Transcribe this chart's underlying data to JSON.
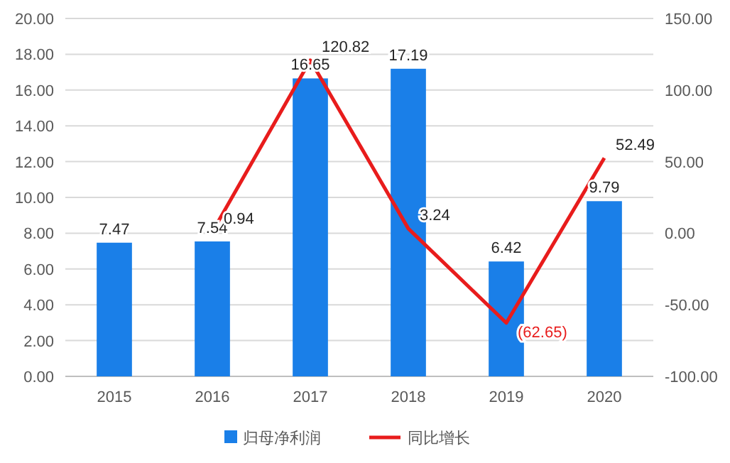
{
  "chart_data": {
    "type": "bar",
    "categories": [
      "2015",
      "2016",
      "2017",
      "2018",
      "2019",
      "2020"
    ],
    "series": [
      {
        "name": "归母净利润",
        "color": "#1a7fe8",
        "values": [
          7.47,
          7.54,
          16.65,
          17.19,
          6.42,
          9.79
        ],
        "value_labels": [
          "7.47",
          "7.54",
          "16.65",
          "17.19",
          "6.42",
          "9.79"
        ]
      },
      {
        "name": "同比增长",
        "type": "line",
        "axis": "y2",
        "color": "#e81c1c",
        "values": [
          null,
          0.94,
          120.82,
          3.24,
          -62.65,
          52.49
        ],
        "value_labels": [
          null,
          "0.94",
          "120.82",
          "3.24",
          "(62.65)",
          "52.49"
        ]
      }
    ],
    "ylim": [
      0,
      20
    ],
    "yticks": [
      {
        "value": 0,
        "label": "0.00"
      },
      {
        "value": 2,
        "label": "2.00"
      },
      {
        "value": 4,
        "label": "4.00"
      },
      {
        "value": 6,
        "label": "6.00"
      },
      {
        "value": 8,
        "label": "8.00"
      },
      {
        "value": 10,
        "label": "10.00"
      },
      {
        "value": 12,
        "label": "12.00"
      },
      {
        "value": 14,
        "label": "14.00"
      },
      {
        "value": 16,
        "label": "16.00"
      },
      {
        "value": 18,
        "label": "18.00"
      },
      {
        "value": 20,
        "label": "20.00"
      }
    ],
    "y2lim": [
      -100,
      150
    ],
    "y2ticks": [
      {
        "value": -100,
        "label": "-100.00"
      },
      {
        "value": -50,
        "label": "-50.00"
      },
      {
        "value": 0,
        "label": "0.00"
      },
      {
        "value": 50,
        "label": "50.00"
      },
      {
        "value": 100,
        "label": "100.00"
      },
      {
        "value": 150,
        "label": "150.00"
      }
    ],
    "grid": "y",
    "legend": "bottom",
    "marker": "none",
    "line_style": "solid"
  }
}
